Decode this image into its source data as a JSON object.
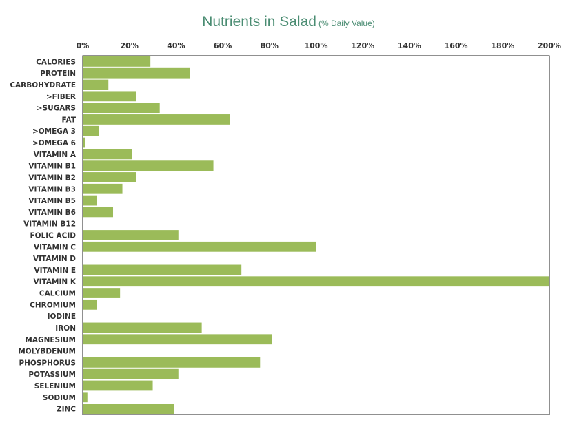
{
  "chart_data": {
    "type": "bar",
    "orientation": "horizontal",
    "title": "Nutrients in Salad",
    "subtitle": "(% Daily Value)",
    "xlim": [
      0,
      200
    ],
    "xticks": [
      "0%",
      "20%",
      "40%",
      "60%",
      "80%",
      "100%",
      "120%",
      "140%",
      "160%",
      "180%",
      "200%"
    ],
    "xaxis_position": "top",
    "grid": false,
    "legend": "none",
    "bar_color": "#9bbb59",
    "title_color": "#4a8c72",
    "categories": [
      "CALORIES",
      "PROTEIN",
      "CARBOHYDRATE",
      ">FIBER",
      ">SUGARS",
      "FAT",
      ">OMEGA 3",
      ">OMEGA 6",
      "VITAMIN A",
      "VITAMIN B1",
      "VITAMIN B2",
      "VITAMIN B3",
      "VITAMIN B5",
      "VITAMIN B6",
      "VITAMIN B12",
      "FOLIC ACID",
      "VITAMIN C",
      "VITAMIN D",
      "VITAMIN E",
      "VITAMIN K",
      "CALCIUM",
      "CHROMIUM",
      "IODINE",
      "IRON",
      "MAGNESIUM",
      "MOLYBDENUM",
      "PHOSPHORUS",
      "POTASSIUM",
      "SELENIUM",
      "SODIUM",
      "ZINC"
    ],
    "values": [
      29,
      46,
      11,
      23,
      33,
      63,
      7,
      1,
      21,
      56,
      23,
      17,
      6,
      13,
      0,
      41,
      100,
      0,
      68,
      200,
      16,
      6,
      0,
      51,
      81,
      0,
      76,
      41,
      30,
      2,
      39
    ]
  }
}
